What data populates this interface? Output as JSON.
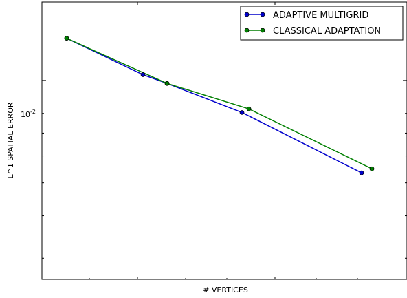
{
  "chart_data": {
    "type": "line",
    "title": "",
    "xlabel": "# VERTICES",
    "ylabel": "L^1 SPATIAL ERROR",
    "yscale": "log",
    "ylim": [
      0.0026,
      0.017
    ],
    "y_tick_labels": [
      {
        "value": 0.01,
        "base": "10",
        "exp": "-2"
      }
    ],
    "grid": false,
    "legend_position": "top-right",
    "series": [
      {
        "name": "ADAPTIVE MULTIGRID",
        "color": "#0000cc",
        "x": [
          97,
          208,
          243,
          352,
          526
        ],
        "y": [
          0.0133,
          0.0104,
          0.0098,
          0.00805,
          0.00535
        ]
      },
      {
        "name": "CLASSICAL ADAPTATION",
        "color": "#007f00",
        "x": [
          97,
          243,
          362,
          541
        ],
        "y": [
          0.0133,
          0.0098,
          0.00825,
          0.0055
        ]
      }
    ]
  }
}
